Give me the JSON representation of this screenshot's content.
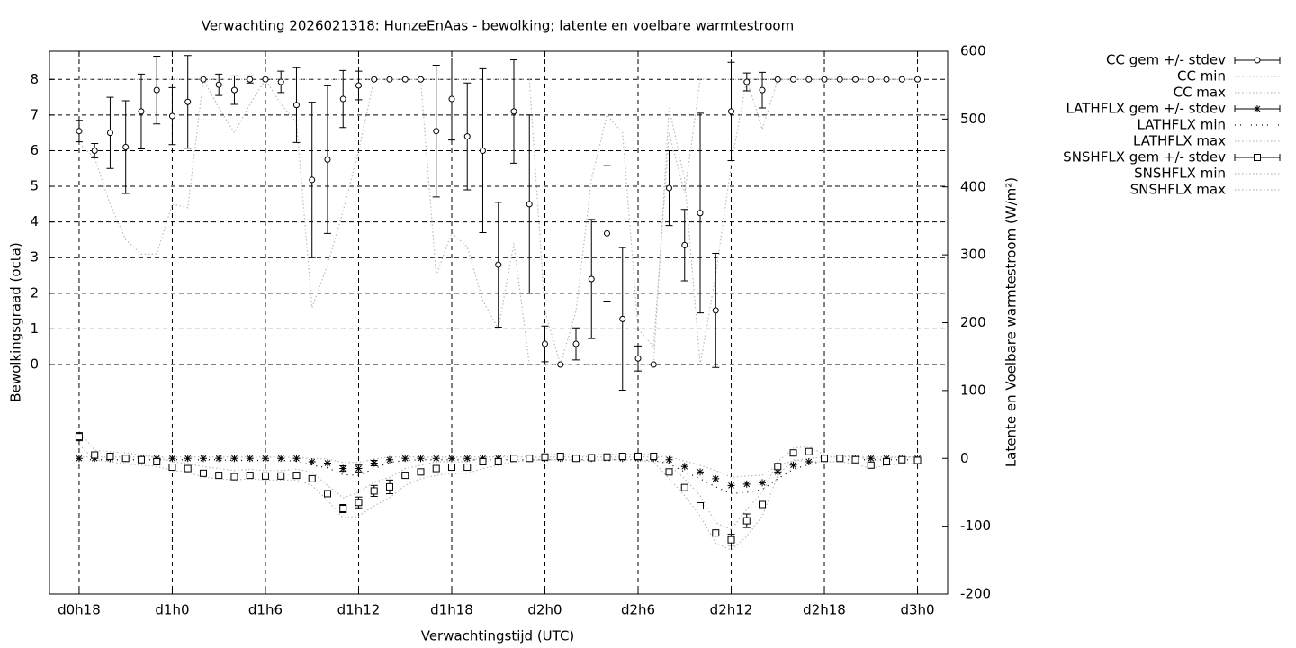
{
  "chart_data": {
    "type": "errorbar",
    "title": "Verwachting 2026021318: HunzeEnAas - bewolking; latente en voelbare warmtestroom",
    "xlabel": "Verwachtingstijd (UTC)",
    "ylabel": "Bewolkingsgraad (octa)",
    "y2label": "Latente en Voelbare warmtestroom (W/m²)",
    "x": [
      0,
      1,
      2,
      3,
      4,
      5,
      6,
      7,
      8,
      9,
      10,
      11,
      12,
      13,
      14,
      15,
      16,
      17,
      18,
      19,
      20,
      21,
      22,
      23,
      24,
      25,
      26,
      27,
      28,
      29,
      30,
      31,
      32,
      33,
      34,
      35,
      36,
      37,
      38,
      39,
      40,
      41,
      42,
      43,
      44,
      45,
      46,
      47,
      48,
      49,
      50,
      51,
      52,
      53,
      54
    ],
    "xlim": [
      -1.91,
      55.94
    ],
    "xticks": [
      {
        "value": 0,
        "label": "d0h18"
      },
      {
        "value": 6,
        "label": "d1h0"
      },
      {
        "value": 12,
        "label": "d1h6"
      },
      {
        "value": 18,
        "label": "d1h12"
      },
      {
        "value": 24,
        "label": "d1h18"
      },
      {
        "value": 30,
        "label": "d2h0"
      },
      {
        "value": 36,
        "label": "d2h6"
      },
      {
        "value": 42,
        "label": "d2h12"
      },
      {
        "value": 48,
        "label": "d2h18"
      },
      {
        "value": 54,
        "label": "d3h0"
      }
    ],
    "ylim": [
      -6.44,
      8.79
    ],
    "yticks": [
      0,
      1,
      2,
      3,
      4,
      5,
      6,
      7,
      8
    ],
    "y2lim": [
      -200,
      600
    ],
    "y2ticks": [
      -200,
      -100,
      0,
      100,
      200,
      300,
      400,
      500,
      600
    ],
    "grid": true,
    "legend": "outside-right",
    "series": [
      {
        "name": "CC gem +/- stdev",
        "color": "#000000",
        "marker": "circle",
        "axis": "y",
        "values": [
          6.55,
          6.0,
          6.5,
          6.1,
          7.1,
          7.7,
          6.97,
          7.37,
          8,
          7.85,
          7.7,
          8,
          8,
          7.93,
          7.28,
          5.18,
          5.75,
          7.45,
          7.83,
          8,
          8,
          8,
          8,
          6.55,
          7.45,
          6.4,
          6.0,
          2.8,
          7.1,
          4.5,
          0.58,
          0,
          0.58,
          2.4,
          3.68,
          1.28,
          0.17,
          0,
          4.95,
          3.35,
          4.25,
          1.52,
          7.1,
          7.93,
          7.7,
          8,
          8,
          8,
          8,
          8,
          8,
          8,
          8,
          8,
          8
        ],
        "errors": [
          0.3,
          0.2,
          1.0,
          1.3,
          1.05,
          0.95,
          0.8,
          1.3,
          0,
          0.3,
          0.4,
          0.1,
          0,
          0.3,
          1.05,
          2.18,
          2.07,
          0.8,
          0.4,
          0,
          0,
          0,
          0,
          1.85,
          1.15,
          1.5,
          2.3,
          1.75,
          1.45,
          2.5,
          0.5,
          0,
          0.45,
          1.67,
          1.9,
          2.0,
          0.35,
          0,
          1.05,
          1.0,
          2.8,
          1.6,
          1.38,
          0.25,
          0.5,
          0,
          0,
          0,
          0,
          0,
          0,
          0,
          0,
          0,
          0
        ]
      },
      {
        "name": "CC min",
        "color": "#bbbbbb",
        "marker": "none",
        "axis": "y",
        "values": [
          6.2,
          5.8,
          4.5,
          3.5,
          3.1,
          3.1,
          4.5,
          4.4,
          8,
          7.2,
          6.5,
          7.3,
          8,
          7.3,
          6.8,
          1.6,
          2.8,
          4.3,
          6,
          8,
          8,
          8,
          8,
          2.5,
          3.7,
          3.3,
          1.8,
          1.0,
          3.4,
          0,
          0,
          0,
          0,
          0,
          0,
          0,
          0,
          0,
          7.2,
          5.2,
          0,
          2.5,
          5.6,
          8,
          6.6,
          8,
          8,
          8,
          8,
          8,
          8,
          8,
          8,
          8,
          8
        ]
      },
      {
        "name": "CC max",
        "color": "#bbbbbb",
        "marker": "none",
        "axis": "y",
        "values": [
          8,
          8,
          8,
          8,
          8,
          8,
          8,
          8,
          8,
          8,
          8,
          8,
          8,
          8,
          8,
          8,
          8,
          8,
          8,
          8,
          8,
          8,
          8,
          8,
          8,
          8,
          8,
          8,
          8,
          8,
          1.5,
          0,
          1.5,
          5.2,
          7,
          6.5,
          1,
          0.5,
          6.5,
          4.8,
          8,
          8,
          8,
          8,
          8,
          8,
          8,
          8,
          8,
          8,
          8,
          8,
          8,
          8,
          8
        ]
      },
      {
        "name": "LATHFLX gem +/- stdev",
        "color": "#000000",
        "marker": "star",
        "axis": "y2",
        "values": [
          0,
          0,
          0,
          0,
          0,
          0,
          0,
          0,
          0,
          0,
          0,
          0,
          0,
          0,
          0,
          -5,
          -7,
          -15,
          -15,
          -7,
          -2,
          0,
          0,
          0,
          0,
          0,
          0,
          0,
          0,
          0,
          0,
          0,
          0,
          0,
          0,
          0,
          0,
          0,
          -2,
          -12,
          -20,
          -30,
          -40,
          -38,
          -36,
          -20,
          -10,
          -5,
          0,
          0,
          0,
          0,
          0,
          0,
          0
        ],
        "errors": [
          0,
          0,
          0,
          0,
          0,
          0,
          0,
          0,
          0,
          0,
          0,
          0,
          0,
          0,
          0,
          0,
          0,
          4,
          5,
          4,
          0,
          0,
          0,
          0,
          0,
          0,
          0,
          0,
          0,
          0,
          0,
          0,
          0,
          0,
          0,
          0,
          0,
          0,
          0,
          0,
          0,
          0,
          0,
          0,
          0,
          0,
          0,
          0,
          0,
          0,
          0,
          0,
          0,
          0,
          0
        ]
      },
      {
        "name": "LATHFLX min",
        "color": "#000000",
        "marker": "none",
        "axis": "y2",
        "values": [
          -2,
          -2,
          -2,
          -2,
          -2,
          -2,
          -2,
          -2,
          -2,
          -2,
          -3,
          -3,
          -3,
          -3,
          -4,
          -10,
          -14,
          -24,
          -25,
          -15,
          -6,
          -3,
          -2,
          -2,
          -2,
          -2,
          -2,
          -2,
          -2,
          -2,
          -2,
          -2,
          -2,
          -2,
          -2,
          -2,
          -2,
          -3,
          -8,
          -20,
          -30,
          -42,
          -52,
          -50,
          -46,
          -30,
          -16,
          -9,
          -3,
          -2,
          -2,
          -2,
          -2,
          -2,
          -2
        ]
      },
      {
        "name": "LATHFLX max",
        "color": "#bbbbbb",
        "marker": "none",
        "axis": "y2",
        "values": [
          2,
          2,
          2,
          2,
          2,
          2,
          2,
          2,
          2,
          2,
          2,
          2,
          2,
          2,
          1,
          0,
          -1,
          -6,
          -6,
          -1,
          2,
          2,
          2,
          2,
          2,
          2,
          2,
          2,
          2,
          2,
          2,
          2,
          2,
          2,
          2,
          2,
          2,
          2,
          3,
          -4,
          -10,
          -18,
          -28,
          -26,
          -25,
          -10,
          -4,
          0,
          2,
          2,
          2,
          2,
          2,
          2,
          2
        ]
      },
      {
        "name": "SNSHFLX gem +/- stdev",
        "color": "#000000",
        "marker": "square",
        "axis": "y2",
        "values": [
          32,
          5,
          3,
          0,
          -2,
          -5,
          -13,
          -15,
          -22,
          -25,
          -27,
          -25,
          -26,
          -26,
          -25,
          -30,
          -52,
          -74,
          -65,
          -48,
          -42,
          -25,
          -20,
          -15,
          -13,
          -13,
          -5,
          -5,
          0,
          0,
          2,
          3,
          0,
          1,
          2,
          3,
          3,
          3,
          -20,
          -43,
          -70,
          -110,
          -120,
          -92,
          -68,
          -12,
          8,
          10,
          0,
          0,
          -2,
          -10,
          -5,
          -2,
          -3
        ],
        "errors": [
          6,
          0,
          0,
          0,
          0,
          0,
          0,
          0,
          0,
          0,
          0,
          0,
          0,
          0,
          0,
          0,
          0,
          6,
          8,
          8,
          10,
          0,
          0,
          0,
          0,
          0,
          0,
          0,
          0,
          0,
          0,
          0,
          0,
          0,
          0,
          0,
          0,
          0,
          0,
          0,
          0,
          0,
          8,
          10,
          0,
          0,
          0,
          0,
          0,
          0,
          0,
          0,
          0,
          0,
          0
        ]
      },
      {
        "name": "SNSHFLX min",
        "color": "#bbbbbb",
        "marker": "none",
        "axis": "y2",
        "values": [
          20,
          -2,
          -5,
          -8,
          -10,
          -12,
          -18,
          -20,
          -28,
          -30,
          -32,
          -30,
          -32,
          -32,
          -32,
          -40,
          -62,
          -88,
          -85,
          -70,
          -58,
          -40,
          -30,
          -25,
          -22,
          -22,
          -15,
          -10,
          -5,
          -3,
          -2,
          -2,
          -3,
          -3,
          -2,
          -2,
          -3,
          -5,
          -30,
          -55,
          -85,
          -125,
          -135,
          -115,
          -85,
          -25,
          -2,
          -5,
          -5,
          -5,
          -8,
          -15,
          -10,
          -8,
          -8
        ]
      },
      {
        "name": "SNSHFLX max",
        "color": "#bbbbbb",
        "marker": "none",
        "axis": "y2",
        "values": [
          40,
          12,
          10,
          8,
          5,
          2,
          -5,
          -8,
          -12,
          -15,
          -18,
          -16,
          -18,
          -18,
          -16,
          -20,
          -40,
          -58,
          -50,
          -35,
          -28,
          -15,
          -10,
          -5,
          -5,
          -5,
          2,
          3,
          5,
          5,
          5,
          6,
          5,
          5,
          6,
          6,
          6,
          6,
          -10,
          -30,
          -55,
          -95,
          -105,
          -75,
          -50,
          -5,
          15,
          18,
          5,
          5,
          3,
          -3,
          0,
          2,
          2
        ]
      }
    ]
  }
}
